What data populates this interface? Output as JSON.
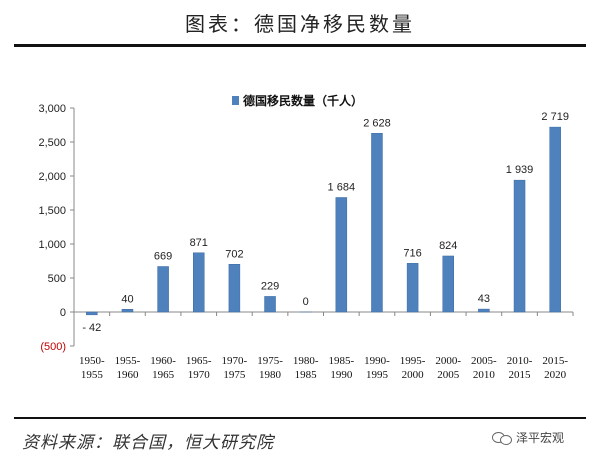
{
  "header": {
    "title": "图表：德国净移民数量"
  },
  "footer": {
    "source": "资料来源：联合国，恒大研究院",
    "watermark": "泽平宏观"
  },
  "chart_data": {
    "type": "bar",
    "title": "",
    "legend": {
      "label": "德国移民数量（千人）",
      "position": "top-center"
    },
    "series_color": "#4f81bd",
    "categories": [
      [
        "1950-",
        "1955"
      ],
      [
        "1955-",
        "1960"
      ],
      [
        "1960-",
        "1965"
      ],
      [
        "1965-",
        "1970"
      ],
      [
        "1970-",
        "1975"
      ],
      [
        "1975-",
        "1980"
      ],
      [
        "1980-",
        "1985"
      ],
      [
        "1985-",
        "1990"
      ],
      [
        "1990-",
        "1995"
      ],
      [
        "1995-",
        "2000"
      ],
      [
        "2000-",
        "2005"
      ],
      [
        "2005-",
        "2010"
      ],
      [
        "2010-",
        "2015"
      ],
      [
        "2015-",
        "2020"
      ]
    ],
    "values": [
      -42,
      40,
      669,
      871,
      702,
      229,
      0,
      1684,
      2628,
      716,
      824,
      43,
      1939,
      2719
    ],
    "data_labels": [
      "- 42",
      "40",
      "669",
      "871",
      "702",
      "229",
      "0",
      "1 684",
      "2 628",
      "716",
      "824",
      "43",
      "1 939",
      "2 719"
    ],
    "ylim": [
      -500,
      3000
    ],
    "y_ticks": [
      3000,
      2500,
      2000,
      1500,
      1000,
      500,
      0,
      -500
    ],
    "y_tick_labels": [
      "3,000",
      "2,500",
      "2,000",
      "1,500",
      "1,000",
      "500",
      "0",
      "(500)"
    ],
    "grid": false
  }
}
